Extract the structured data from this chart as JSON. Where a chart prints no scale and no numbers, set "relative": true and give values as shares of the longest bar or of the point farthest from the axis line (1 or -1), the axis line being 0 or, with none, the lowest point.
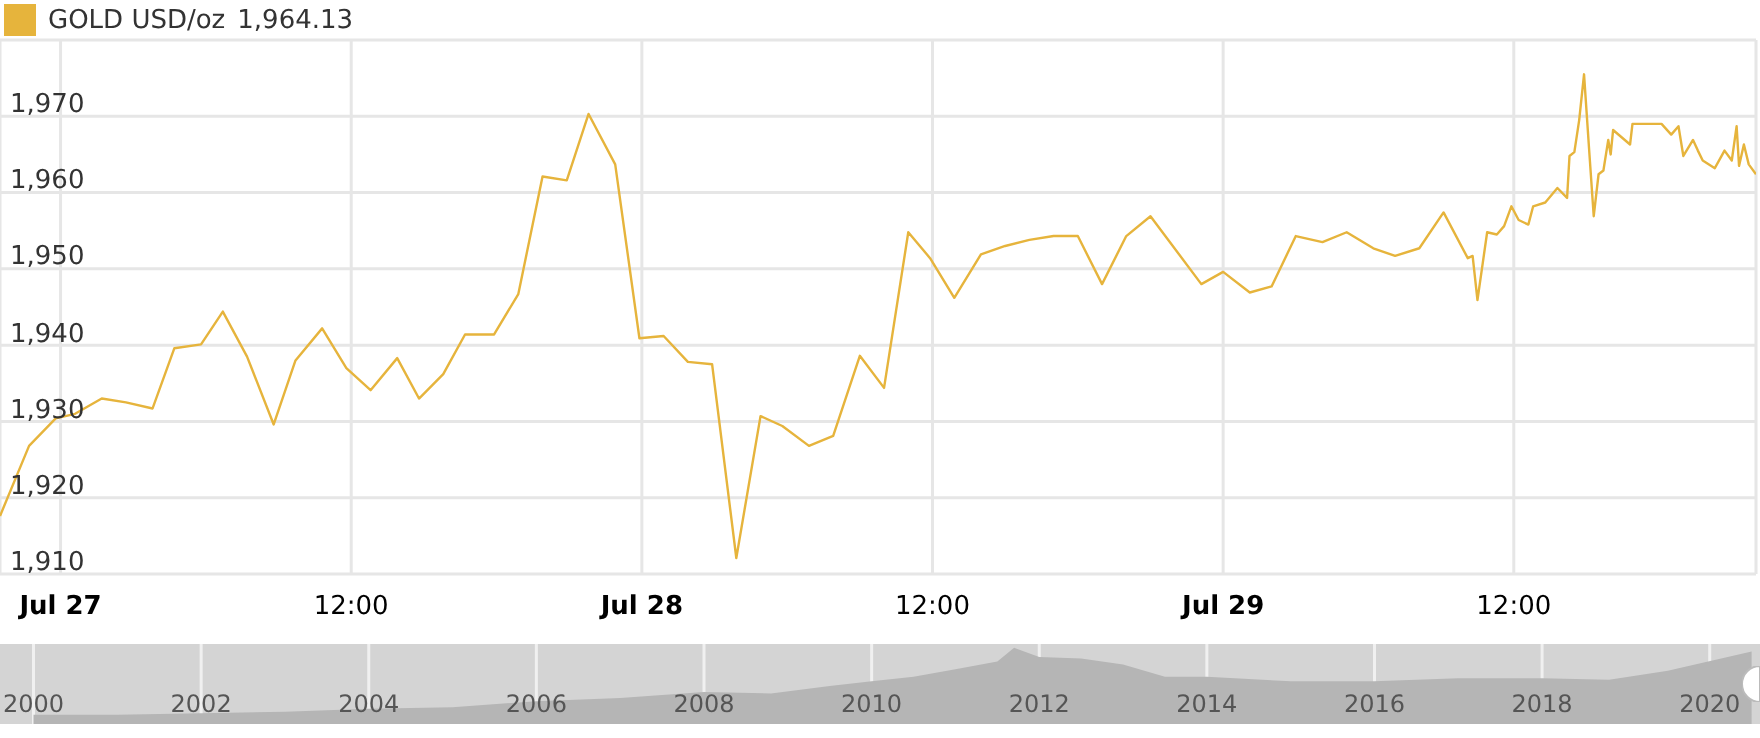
{
  "chart_data": [
    {
      "type": "line",
      "legend": "top left",
      "grid": true,
      "marker": "none",
      "line_style": "solid",
      "annotations": [
        "1,964.13"
      ],
      "xlim": [
        "--07-26T21:30",
        "--07-29T22:00"
      ],
      "xticks": [
        {
          "value": "--07-27T00:00",
          "label": "Jul 27"
        },
        {
          "value": "--07-27T12:00",
          "label": "12:00"
        },
        {
          "value": "--07-28T00:00",
          "label": "Jul 28"
        },
        {
          "value": "--07-28T12:00",
          "label": "12:00"
        },
        {
          "value": "--07-29T00:00",
          "label": "Jul 29"
        },
        {
          "value": "--07-29T12:00",
          "label": "12:00"
        }
      ],
      "ylim": [
        1910,
        1980
      ],
      "yticks": [
        {
          "value": 1910,
          "label": "1,910"
        },
        {
          "value": 1920,
          "label": "1,920"
        },
        {
          "value": 1930,
          "label": "1,930"
        },
        {
          "value": 1940,
          "label": "1,940"
        },
        {
          "value": 1950,
          "label": "1,950"
        },
        {
          "value": 1960,
          "label": "1,960"
        },
        {
          "value": 1970,
          "label": "1,970"
        }
      ],
      "series": [
        {
          "name": "GOLD USD/oz",
          "color": "#e6b43c",
          "x": [
            "--07-26T21:30",
            "--07-26T22:42",
            "--07-26T23:48",
            "--07-27T00:36",
            "--07-27T01:42",
            "--07-27T02:42",
            "--07-27T03:48",
            "--07-27T04:42",
            "--07-27T05:48",
            "--07-27T06:42",
            "--07-27T07:42",
            "--07-27T08:48",
            "--07-27T09:42",
            "--07-27T10:48",
            "--07-27T11:48",
            "--07-27T12:48",
            "--07-27T13:54",
            "--07-27T14:48",
            "--07-27T15:48",
            "--07-27T16:42",
            "--07-27T17:54",
            "--07-27T18:54",
            "--07-27T19:54",
            "--07-27T20:54",
            "--07-27T21:48",
            "--07-27T22:54",
            "--07-27T23:54",
            "--07-28T00:54",
            "--07-28T01:54",
            "--07-28T02:54",
            "--07-28T03:54",
            "--07-28T04:54",
            "--07-28T05:48",
            "--07-28T06:54",
            "--07-28T07:54",
            "--07-28T09:00",
            "--07-28T10:00",
            "--07-28T11:00",
            "--07-28T11:54",
            "--07-28T12:54",
            "--07-28T14:00",
            "--07-28T15:00",
            "--07-28T16:00",
            "--07-28T17:00",
            "--07-28T18:00",
            "--07-28T19:00",
            "--07-28T20:00",
            "--07-28T21:00",
            "--07-28T23:06",
            "--07-29T00:00",
            "--07-29T01:06",
            "--07-29T02:00",
            "--07-29T03:00",
            "--07-29T04:06",
            "--07-29T05:06",
            "--07-29T06:12",
            "--07-29T07:06",
            "--07-29T08:06",
            "--07-29T09:06",
            "--07-29T10:06",
            "--07-29T10:18",
            "--07-29T10:30",
            "--07-29T10:54",
            "--07-29T11:18",
            "--07-29T11:36",
            "--07-29T11:54",
            "--07-29T12:12",
            "--07-29T12:36",
            "--07-29T12:48",
            "--07-29T13:18",
            "--07-29T13:48",
            "--07-29T14:12",
            "--07-29T14:18",
            "--07-29T14:30",
            "--07-29T14:42",
            "--07-29T14:54",
            "--07-29T15:06",
            "--07-29T15:18",
            "--07-29T15:30",
            "--07-29T15:42",
            "--07-29T15:54",
            "--07-29T16:00",
            "--07-29T16:06",
            "--07-29T16:48",
            "--07-29T16:54",
            "--07-29T18:06",
            "--07-29T18:30",
            "--07-29T18:48",
            "--07-29T19:00",
            "--07-29T19:24",
            "--07-29T19:36",
            "--07-29T19:48",
            "--07-29T20:18",
            "--07-29T20:42",
            "--07-29T21:00",
            "--07-29T21:12",
            "--07-29T21:18",
            "--07-29T21:30",
            "--07-29T21:42",
            "--07-29T22:00"
          ],
          "values": [
            1917.6,
            1926.8,
            1930.4,
            1931,
            1933,
            1932.5,
            1931.7,
            1939.6,
            1940.1,
            1944.4,
            1938.5,
            1929.6,
            1938,
            1942.2,
            1937,
            1934.1,
            1938.3,
            1933,
            1936.2,
            1941.4,
            1941.4,
            1946.7,
            1962.1,
            1961.6,
            1970.3,
            1963.7,
            1940.9,
            1941.2,
            1937.8,
            1937.5,
            1912.1,
            1930.7,
            1929.4,
            1926.8,
            1928.1,
            1938.6,
            1934.4,
            1954.8,
            1951.4,
            1946.2,
            1951.9,
            1953,
            1953.8,
            1954.3,
            1954.3,
            1948,
            1954.3,
            1956.9,
            1948,
            1949.6,
            1946.9,
            1947.7,
            1954.3,
            1953.5,
            1954.8,
            1952.7,
            1951.7,
            1952.7,
            1957.4,
            1951.4,
            1951.7,
            1945.9,
            1954.8,
            1954.5,
            1955.6,
            1958.2,
            1956.4,
            1955.8,
            1958.2,
            1958.7,
            1960.6,
            1959.3,
            1964.8,
            1965.3,
            1969.5,
            1975.5,
            1966.1,
            1956.9,
            1962.4,
            1962.9,
            1966.9,
            1965,
            1968.2,
            1966.3,
            1969,
            1969,
            1967.6,
            1968.7,
            1964.8,
            1966.9,
            1965.5,
            1964.2,
            1963.2,
            1965.5,
            1964.2,
            1968.7,
            1963.5,
            1966.3,
            1963.7,
            1962.4
          ]
        }
      ]
    },
    {
      "type": "area",
      "relative": true,
      "grid": "x",
      "xlim": [
        1999.6,
        2020.6
      ],
      "xticks": [
        2000,
        2002,
        2004,
        2006,
        2008,
        2010,
        2012,
        2014,
        2016,
        2018,
        2020
      ],
      "series": [
        {
          "color": "#b5b5b5",
          "x": [
            2000,
            2001,
            2002,
            2003,
            2004,
            2005,
            2006,
            2007,
            2008,
            2008.8,
            2009.5,
            2010,
            2010.5,
            2011,
            2011.5,
            2011.7,
            2012,
            2012.5,
            2013,
            2013.5,
            2014,
            2015,
            2016,
            2017,
            2018,
            2018.8,
            2019.5,
            2020.5
          ],
          "values": [
            0.12,
            0.12,
            0.14,
            0.16,
            0.2,
            0.22,
            0.3,
            0.34,
            0.42,
            0.4,
            0.5,
            0.56,
            0.62,
            0.72,
            0.82,
            1.0,
            0.88,
            0.86,
            0.78,
            0.62,
            0.62,
            0.56,
            0.56,
            0.6,
            0.6,
            0.58,
            0.7,
            0.95
          ]
        }
      ]
    }
  ]
}
